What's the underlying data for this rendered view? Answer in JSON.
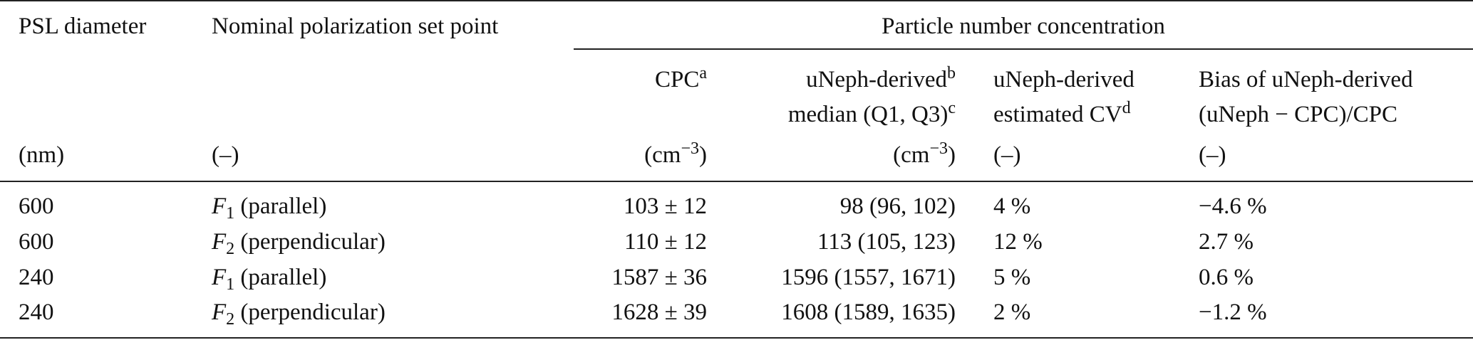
{
  "table": {
    "group_header": "Particle number concentration",
    "columns": [
      {
        "title": [
          [
            "PSL diameter"
          ]
        ],
        "unit": [
          "(nm)"
        ]
      },
      {
        "title": [
          [
            "Nominal polarization set point"
          ]
        ],
        "unit": [
          "(–)"
        ]
      },
      {
        "title": [
          [
            "CPC",
            {
              "text": "a",
              "style": "sup"
            }
          ]
        ],
        "unit": [
          "(cm",
          {
            "text": "−3",
            "style": "sup"
          },
          ")"
        ]
      },
      {
        "title": [
          [
            "uNeph-derived",
            {
              "text": "b",
              "style": "sup"
            }
          ],
          [
            "median (Q1, Q3)",
            {
              "text": "c",
              "style": "sup"
            }
          ]
        ],
        "unit": [
          "(cm",
          {
            "text": "−3",
            "style": "sup"
          },
          ")"
        ]
      },
      {
        "title": [
          [
            "uNeph-derived"
          ],
          [
            "estimated CV",
            {
              "text": "d",
              "style": "sup"
            }
          ]
        ],
        "unit": [
          "(–)"
        ]
      },
      {
        "title": [
          [
            "Bias of uNeph-derived"
          ],
          [
            "(uNeph − CPC)/CPC"
          ]
        ],
        "unit": [
          "(–)"
        ]
      }
    ],
    "rows": [
      [
        [
          "600"
        ],
        [
          {
            "text": "F",
            "style": "italic"
          },
          {
            "text": "1",
            "style": "sub"
          },
          " (parallel)"
        ],
        [
          "103 ± 12"
        ],
        [
          "98 (96, 102)"
        ],
        [
          "4 %"
        ],
        [
          "−4.6 %"
        ]
      ],
      [
        [
          "600"
        ],
        [
          {
            "text": "F",
            "style": "italic"
          },
          {
            "text": "2",
            "style": "sub"
          },
          " (perpendicular)"
        ],
        [
          "110 ± 12"
        ],
        [
          "113 (105, 123)"
        ],
        [
          "12 %"
        ],
        [
          "2.7 %"
        ]
      ],
      [
        [
          "240"
        ],
        [
          {
            "text": "F",
            "style": "italic"
          },
          {
            "text": "1",
            "style": "sub"
          },
          " (parallel)"
        ],
        [
          "1587 ± 36"
        ],
        [
          "1596 (1557, 1671)"
        ],
        [
          "5 %"
        ],
        [
          "0.6 %"
        ]
      ],
      [
        [
          "240"
        ],
        [
          {
            "text": "F",
            "style": "italic"
          },
          {
            "text": "2",
            "style": "sub"
          },
          " (perpendicular)"
        ],
        [
          "1628 ± 39"
        ],
        [
          "1608 (1589, 1635)"
        ],
        [
          "2 %"
        ],
        [
          "−1.2 %"
        ]
      ]
    ]
  }
}
